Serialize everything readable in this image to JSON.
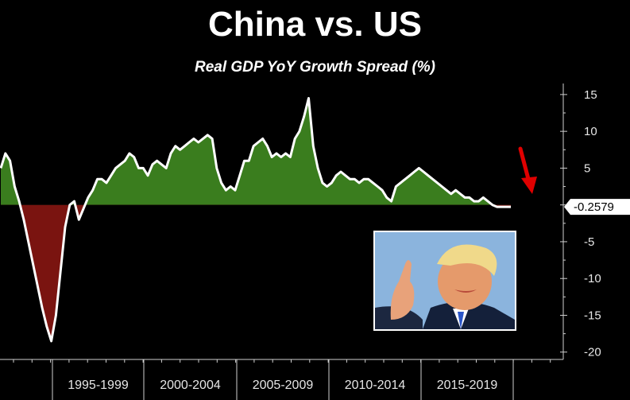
{
  "chart_data": {
    "type": "area",
    "title": "China vs. US",
    "subtitle": "Real GDP YoY Growth Spread (%)",
    "x_categories": [
      "1995-1999",
      "2000-2004",
      "2005-2009",
      "2010-2014",
      "2015-2019"
    ],
    "yticks": [
      15,
      10,
      5,
      0,
      -5,
      -10,
      -15,
      -20
    ],
    "ylim": [
      -21,
      16.5
    ],
    "last_value_label": "-0.2579",
    "series": [
      {
        "x": [
          1992.0,
          1992.25,
          1992.5,
          1992.75,
          1993.0,
          1993.25,
          1993.5,
          1993.75,
          1994.0,
          1994.25,
          1994.5,
          1994.75,
          1995.0,
          1995.25,
          1995.5,
          1995.75,
          1996.0,
          1996.25,
          1996.5,
          1996.75,
          1997.0,
          1997.25,
          1997.5,
          1997.75,
          1998.0,
          1998.25,
          1998.5,
          1998.75,
          1999.0,
          1999.25,
          1999.5,
          1999.75,
          2000.0,
          2000.25,
          2000.5,
          2000.75,
          2001.0,
          2001.25,
          2001.5,
          2001.75,
          2002.0,
          2002.25,
          2002.5,
          2002.75,
          2003.0,
          2003.25,
          2003.5,
          2003.75,
          2004.0,
          2004.25,
          2004.5,
          2004.75,
          2005.0,
          2005.25,
          2005.5,
          2005.75,
          2006.0,
          2006.25,
          2006.5,
          2006.75,
          2007.0,
          2007.25,
          2007.5,
          2007.75,
          2008.0,
          2008.25,
          2008.5,
          2008.75,
          2009.0,
          2009.25,
          2009.5,
          2009.75,
          2010.0,
          2010.25,
          2010.5,
          2010.75,
          2011.0,
          2011.25,
          2011.5,
          2011.75,
          2012.0,
          2012.25,
          2012.5,
          2012.75,
          2013.0,
          2013.25,
          2013.5,
          2013.75,
          2014.0,
          2014.25,
          2014.5,
          2014.75,
          2015.0,
          2015.25,
          2015.5,
          2015.75,
          2016.0,
          2016.25,
          2016.5,
          2016.75,
          2017.0,
          2017.25,
          2017.5,
          2017.75,
          2018.0,
          2018.25,
          2018.5,
          2018.75,
          2019.0,
          2019.25,
          2019.5,
          2019.75
        ],
        "y": [
          5.0,
          7.0,
          6.0,
          2.5,
          0.5,
          -2.0,
          -5.0,
          -8.0,
          -11.0,
          -14.0,
          -16.5,
          -18.5,
          -15.0,
          -9.0,
          -3.0,
          0.0,
          0.5,
          -2.0,
          -0.5,
          1.0,
          2.0,
          3.5,
          3.5,
          3.0,
          4.0,
          5.0,
          5.5,
          6.0,
          7.0,
          6.5,
          5.0,
          5.0,
          4.0,
          5.5,
          6.0,
          5.5,
          5.0,
          7.0,
          8.0,
          7.5,
          8.0,
          8.5,
          9.0,
          8.5,
          9.0,
          9.5,
          9.0,
          5.0,
          3.0,
          2.0,
          2.5,
          2.0,
          4.0,
          6.0,
          6.0,
          8.0,
          8.5,
          9.0,
          8.0,
          6.5,
          7.0,
          6.5,
          7.0,
          6.5,
          9.0,
          10.0,
          12.0,
          14.5,
          8.0,
          5.0,
          3.0,
          2.5,
          3.0,
          4.0,
          4.5,
          4.0,
          3.5,
          3.5,
          3.0,
          3.5,
          3.5,
          3.0,
          2.5,
          2.0,
          1.0,
          0.5,
          2.5,
          3.0,
          3.5,
          4.0,
          4.5,
          5.0,
          4.5,
          4.0,
          3.5,
          3.0,
          2.5,
          2.0,
          1.5,
          2.0,
          1.5,
          1.0,
          1.0,
          0.5,
          0.5,
          1.0,
          0.5,
          0.0,
          -0.2579,
          -0.2579,
          -0.2579,
          -0.2579
        ]
      }
    ],
    "colors": {
      "positive": "#3a7d1e",
      "negative": "#7a1410",
      "line": "#ffffff",
      "arrow": "#e00000"
    }
  },
  "photo": {
    "icon": "pointing-man-photo"
  }
}
